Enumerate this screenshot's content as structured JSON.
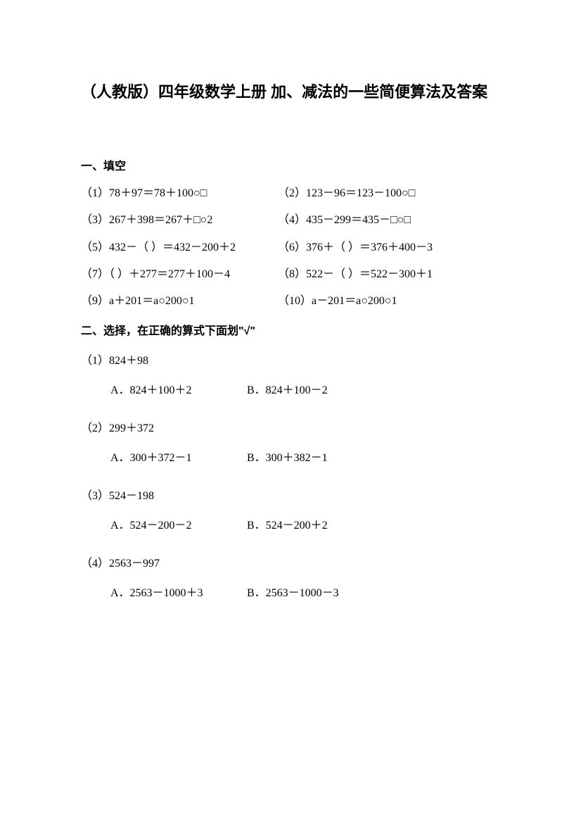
{
  "title": "（人教版）四年级数学上册 加、减法的一些简便算法及答案",
  "section1": {
    "heading": "一、填空",
    "items": [
      {
        "left": "（1）78＋97＝78＋100○□",
        "right": "（2）123－96＝123－100○□"
      },
      {
        "left": "（3）267＋398＝267＋□○2",
        "right": "（4）435－299＝435－□○□"
      },
      {
        "left": "（5）432－（  ）＝432－200＋2",
        "right": "（6）376＋（  ）＝376＋400－3"
      },
      {
        "left": "（7）（  ）＋277＝277＋100－4",
        "right": "（8）522－（  ）＝522－300＋1"
      },
      {
        "left": "（9）a＋201＝a○200○1",
        "right": "（10）a－201＝a○200○1"
      }
    ]
  },
  "section2": {
    "heading": "二、选择，在正确的算式下面划\"√\"",
    "items": [
      {
        "q": "（1）824＋98",
        "a": "A．824＋100＋2",
        "b": "B．824＋100－2"
      },
      {
        "q": "（2）299＋372",
        "a": "A．300＋372－1",
        "b": "B．300＋382－1"
      },
      {
        "q": "（3）524－198",
        "a": "A．524－200－2",
        "b": "B．524－200＋2"
      },
      {
        "q": "（4）2563－997",
        "a": "A．2563－1000＋3",
        "b": "B．2563－1000－3"
      }
    ]
  },
  "colors": {
    "text": "#000000",
    "background": "#ffffff"
  },
  "typography": {
    "title_fontsize": 22,
    "body_fontsize": 16,
    "title_font": "SimHei",
    "body_font": "SimSun"
  }
}
